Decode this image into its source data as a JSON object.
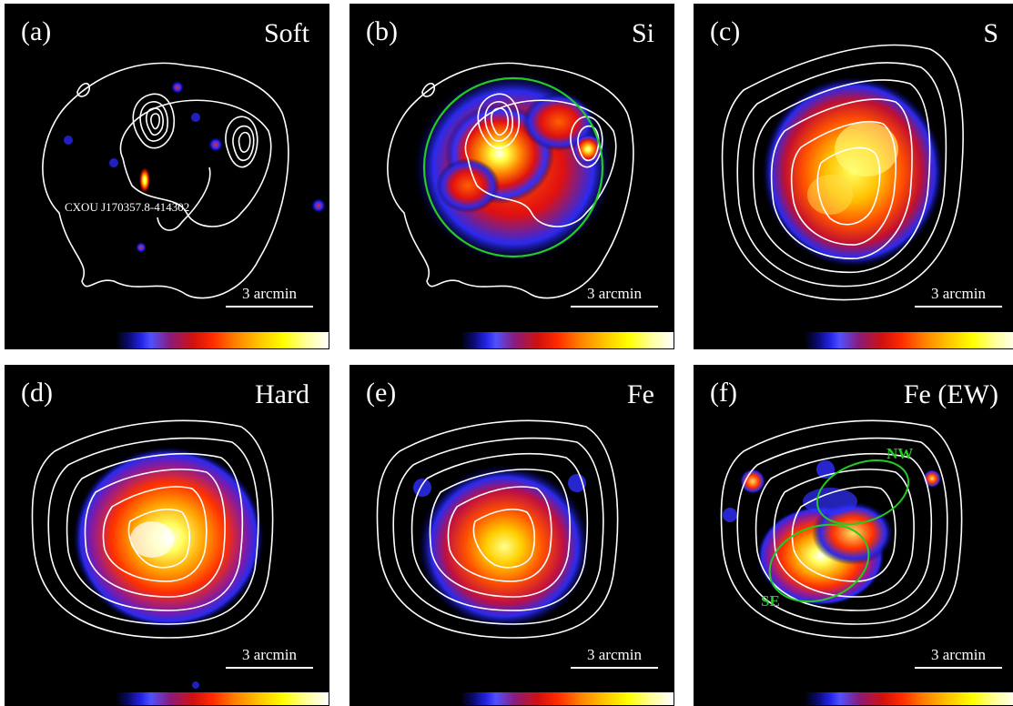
{
  "panels": [
    {
      "label": "(a)",
      "band": "Soft",
      "scale": "3 arcmin",
      "source_name": "CXOU J170357.8-414302"
    },
    {
      "label": "(b)",
      "band": "Si",
      "scale": "3 arcmin"
    },
    {
      "label": "(c)",
      "band": "S",
      "scale": "3 arcmin"
    },
    {
      "label": "(d)",
      "band": "Hard",
      "scale": "3 arcmin"
    },
    {
      "label": "(e)",
      "band": "Fe",
      "scale": "3 arcmin"
    },
    {
      "label": "(f)",
      "band": "Fe (EW)",
      "scale": "3 arcmin",
      "regions": [
        "NW",
        "SE"
      ]
    }
  ],
  "colors": {
    "background": "#000000",
    "contour": "#ffffff",
    "region": "#22cc22",
    "colormap": "b-heat (black-blue-red-yellow-white)"
  },
  "icons": [
    "contour-overlay",
    "region-circle",
    "colorbar"
  ]
}
